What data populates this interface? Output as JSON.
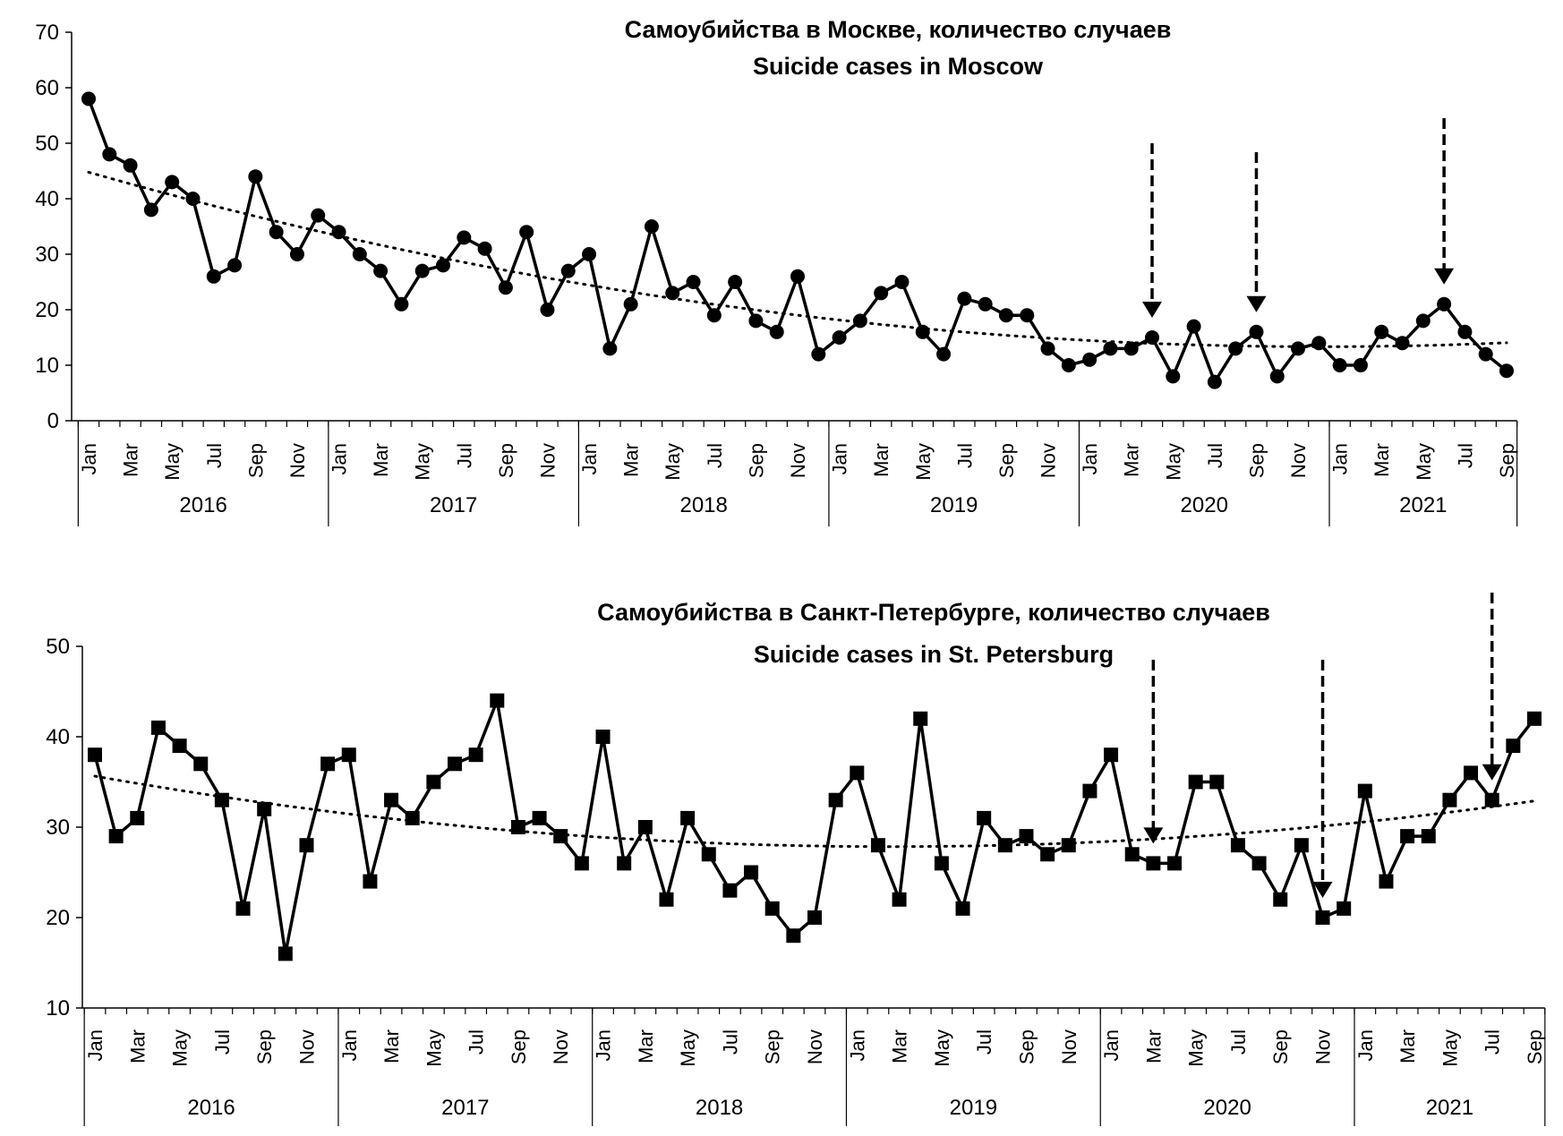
{
  "chart_data": [
    {
      "type": "line",
      "title": "Самоубийства в Москве, количество случаев",
      "subtitle": "Suicide cases in Moscow",
      "xlabel": "",
      "ylabel": "",
      "ylim": [
        0,
        70
      ],
      "yticks": [
        0,
        10,
        20,
        30,
        40,
        50,
        60,
        70
      ],
      "years": [
        "2016",
        "2017",
        "2018",
        "2019",
        "2020",
        "2021"
      ],
      "month_labels": [
        "Jan",
        "",
        "Mar",
        "",
        "May",
        "",
        "Jul",
        "",
        "Sep",
        "",
        "Nov",
        "",
        "Jan",
        "",
        "Mar",
        "",
        "May",
        "",
        "Jul",
        "",
        "Sep",
        "",
        "Nov",
        "",
        "Jan",
        "",
        "Mar",
        "",
        "May",
        "",
        "Jul",
        "",
        "Sep",
        "",
        "Nov",
        "",
        "Jan",
        "",
        "Mar",
        "",
        "May",
        "",
        "Jul",
        "",
        "Sep",
        "",
        "Nov",
        "",
        "Jan",
        "",
        "Mar",
        "",
        "May",
        "",
        "Jul",
        "",
        "Sep",
        "",
        "Nov",
        "",
        "Jan",
        "",
        "Mar",
        "",
        "May",
        "",
        "Jul",
        "",
        "Sep"
      ],
      "marker": "circle",
      "trendline": "dotted",
      "arrows_at_index": [
        51,
        56,
        65
      ],
      "series": [
        {
          "name": "Suicide cases in Moscow",
          "values": [
            58,
            48,
            46,
            38,
            43,
            40,
            26,
            28,
            44,
            34,
            30,
            37,
            34,
            30,
            27,
            21,
            27,
            28,
            33,
            31,
            24,
            34,
            20,
            27,
            30,
            13,
            21,
            35,
            23,
            25,
            19,
            25,
            18,
            16,
            26,
            12,
            15,
            18,
            23,
            25,
            16,
            12,
            22,
            21,
            19,
            19,
            13,
            10,
            11,
            13,
            13,
            15,
            8,
            17,
            7,
            13,
            16,
            8,
            13,
            14,
            10,
            10,
            16,
            14,
            18,
            21,
            16,
            12,
            9
          ]
        }
      ]
    },
    {
      "type": "line",
      "title": "Самоубийства в Санкт-Петербурге, количество случаев",
      "subtitle": "Suicide cases in St. Petersburg",
      "xlabel": "",
      "ylabel": "",
      "ylim": [
        10,
        50
      ],
      "yticks": [
        10,
        20,
        30,
        40,
        50
      ],
      "years": [
        "2016",
        "2017",
        "2018",
        "2019",
        "2020",
        "2021"
      ],
      "month_labels": [
        "Jan",
        "",
        "Mar",
        "",
        "May",
        "",
        "Jul",
        "",
        "Sep",
        "",
        "Nov",
        "",
        "Jan",
        "",
        "Mar",
        "",
        "May",
        "",
        "Jul",
        "",
        "Sep",
        "",
        "Nov",
        "",
        "Jan",
        "",
        "Mar",
        "",
        "May",
        "",
        "Jul",
        "",
        "Sep",
        "",
        "Nov",
        "",
        "Jan",
        "",
        "Mar",
        "",
        "May",
        "",
        "Jul",
        "",
        "Sep",
        "",
        "Nov",
        "",
        "Jan",
        "",
        "Mar",
        "",
        "May",
        "",
        "Jul",
        "",
        "Sep",
        "",
        "Nov",
        "",
        "Jan",
        "",
        "Mar",
        "",
        "May",
        "",
        "Jul",
        "",
        "Sep"
      ],
      "marker": "square",
      "trendline": "dotted",
      "arrows_at_index": [
        50,
        58,
        66
      ],
      "series": [
        {
          "name": "Suicide cases in St. Petersburg",
          "values": [
            38,
            29,
            31,
            41,
            39,
            37,
            33,
            21,
            32,
            16,
            28,
            37,
            38,
            24,
            33,
            31,
            35,
            37,
            38,
            44,
            30,
            31,
            29,
            26,
            40,
            26,
            30,
            22,
            31,
            27,
            23,
            25,
            21,
            18,
            20,
            33,
            36,
            28,
            22,
            42,
            26,
            21,
            31,
            28,
            29,
            27,
            28,
            34,
            38,
            27,
            26,
            26,
            35,
            35,
            28,
            26,
            22,
            28,
            20,
            21,
            34,
            24,
            29,
            29,
            33,
            36,
            33,
            39,
            42
          ]
        }
      ]
    }
  ]
}
